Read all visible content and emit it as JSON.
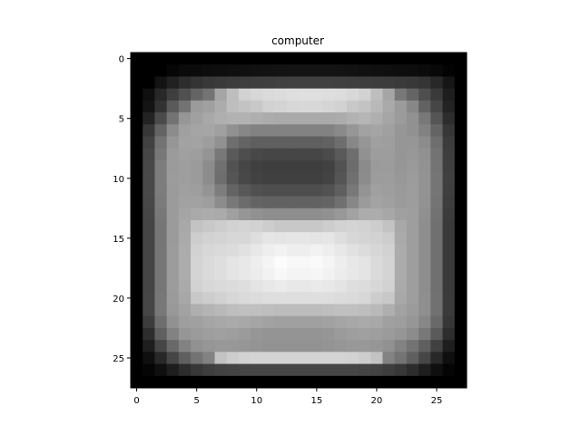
{
  "chart_data": {
    "type": "heatmap",
    "title": "computer",
    "xlabel": "",
    "ylabel": "",
    "colormap": "gray",
    "xlim": [
      -0.5,
      27.5
    ],
    "ylim": [
      27.5,
      -0.5
    ],
    "xticks": [
      0,
      5,
      10,
      15,
      20,
      25
    ],
    "yticks": [
      0,
      5,
      10,
      15,
      20,
      25
    ],
    "xtick_labels": [
      "0",
      "5",
      "10",
      "15",
      "20",
      "25"
    ],
    "ytick_labels": [
      "0",
      "5",
      "10",
      "15",
      "20",
      "25"
    ],
    "grid": false,
    "shape": [
      28,
      28
    ],
    "values": [
      [
        0,
        0,
        0,
        0,
        0,
        0,
        0,
        0,
        0,
        0,
        0,
        0,
        0,
        0,
        0,
        0,
        0,
        0,
        0,
        0,
        0,
        0,
        0,
        0,
        0,
        0,
        0,
        0
      ],
      [
        0,
        0,
        0,
        6,
        10,
        11,
        13,
        14,
        15,
        16,
        17,
        18,
        19,
        20,
        20,
        20,
        20,
        19,
        18,
        17,
        16,
        15,
        14,
        13,
        11,
        8,
        3,
        0
      ],
      [
        0,
        0,
        19,
        33,
        45,
        52,
        56,
        58,
        60,
        61,
        62,
        63,
        64,
        65,
        65,
        65,
        65,
        64,
        63,
        62,
        61,
        60,
        58,
        56,
        52,
        40,
        22,
        0
      ],
      [
        0,
        15,
        40,
        62,
        80,
        100,
        115,
        165,
        190,
        210,
        215,
        218,
        220,
        222,
        223,
        223,
        222,
        220,
        216,
        210,
        190,
        165,
        120,
        100,
        78,
        58,
        30,
        0
      ],
      [
        0,
        20,
        50,
        90,
        115,
        155,
        160,
        172,
        190,
        195,
        200,
        210,
        212,
        215,
        216,
        216,
        213,
        210,
        200,
        195,
        185,
        170,
        155,
        135,
        98,
        70,
        35,
        0
      ],
      [
        0,
        35,
        75,
        115,
        150,
        160,
        168,
        175,
        178,
        178,
        175,
        172,
        170,
        170,
        170,
        170,
        170,
        172,
        178,
        182,
        175,
        165,
        155,
        145,
        120,
        85,
        45,
        0
      ],
      [
        0,
        55,
        100,
        140,
        160,
        165,
        166,
        160,
        145,
        135,
        130,
        130,
        130,
        130,
        130,
        130,
        130,
        138,
        150,
        162,
        165,
        160,
        150,
        145,
        130,
        100,
        55,
        0
      ],
      [
        0,
        65,
        115,
        150,
        162,
        163,
        158,
        145,
        110,
        100,
        95,
        95,
        95,
        95,
        95,
        95,
        98,
        110,
        135,
        150,
        160,
        158,
        150,
        150,
        140,
        110,
        60,
        0
      ],
      [
        0,
        70,
        120,
        155,
        160,
        158,
        148,
        120,
        90,
        78,
        72,
        70,
        70,
        70,
        70,
        70,
        75,
        90,
        110,
        145,
        157,
        157,
        150,
        152,
        145,
        115,
        62,
        0
      ],
      [
        0,
        72,
        125,
        155,
        158,
        155,
        140,
        112,
        82,
        70,
        64,
        62,
        62,
        62,
        62,
        62,
        65,
        82,
        108,
        138,
        155,
        156,
        150,
        154,
        146,
        116,
        63,
        0
      ],
      [
        0,
        73,
        125,
        156,
        158,
        155,
        140,
        110,
        85,
        72,
        66,
        64,
        64,
        64,
        64,
        64,
        67,
        85,
        112,
        140,
        156,
        157,
        152,
        156,
        147,
        117,
        64,
        0
      ],
      [
        0,
        73,
        125,
        155,
        160,
        158,
        148,
        125,
        100,
        88,
        80,
        78,
        78,
        78,
        78,
        78,
        82,
        95,
        120,
        148,
        160,
        158,
        154,
        157,
        147,
        117,
        63,
        0
      ],
      [
        0,
        72,
        123,
        155,
        162,
        162,
        158,
        140,
        120,
        108,
        100,
        98,
        98,
        98,
        98,
        98,
        100,
        112,
        135,
        155,
        163,
        160,
        155,
        157,
        146,
        116,
        62,
        0
      ],
      [
        0,
        70,
        120,
        155,
        165,
        170,
        172,
        170,
        160,
        150,
        145,
        142,
        142,
        142,
        142,
        142,
        145,
        152,
        162,
        172,
        172,
        168,
        160,
        158,
        144,
        114,
        60,
        0
      ],
      [
        0,
        68,
        118,
        155,
        168,
        195,
        200,
        205,
        210,
        212,
        210,
        205,
        200,
        200,
        200,
        200,
        205,
        210,
        212,
        210,
        205,
        195,
        168,
        158,
        142,
        112,
        58,
        0
      ],
      [
        0,
        68,
        118,
        155,
        170,
        205,
        210,
        212,
        215,
        215,
        222,
        230,
        228,
        230,
        230,
        228,
        230,
        222,
        215,
        212,
        210,
        205,
        170,
        158,
        142,
        112,
        58,
        0
      ],
      [
        0,
        68,
        118,
        156,
        172,
        210,
        215,
        218,
        220,
        225,
        232,
        238,
        242,
        238,
        238,
        242,
        238,
        232,
        225,
        220,
        215,
        210,
        172,
        158,
        142,
        112,
        58,
        0
      ],
      [
        0,
        68,
        118,
        156,
        172,
        212,
        218,
        222,
        228,
        232,
        238,
        245,
        252,
        248,
        248,
        250,
        245,
        238,
        232,
        228,
        218,
        212,
        172,
        158,
        142,
        112,
        58,
        0
      ],
      [
        0,
        68,
        118,
        156,
        172,
        212,
        218,
        222,
        228,
        232,
        236,
        242,
        248,
        244,
        244,
        246,
        242,
        236,
        232,
        228,
        218,
        212,
        172,
        158,
        142,
        112,
        58,
        0
      ],
      [
        0,
        68,
        118,
        156,
        170,
        210,
        215,
        218,
        220,
        222,
        228,
        232,
        235,
        232,
        232,
        234,
        232,
        228,
        222,
        220,
        215,
        210,
        170,
        158,
        142,
        112,
        58,
        0
      ],
      [
        0,
        70,
        120,
        155,
        168,
        200,
        205,
        210,
        215,
        218,
        220,
        222,
        222,
        222,
        222,
        222,
        222,
        220,
        218,
        215,
        205,
        200,
        168,
        158,
        143,
        113,
        59,
        0
      ],
      [
        0,
        70,
        120,
        152,
        162,
        175,
        180,
        185,
        190,
        192,
        192,
        190,
        188,
        188,
        188,
        188,
        190,
        192,
        192,
        190,
        185,
        175,
        162,
        155,
        143,
        113,
        59,
        0
      ],
      [
        0,
        60,
        110,
        145,
        158,
        160,
        165,
        168,
        170,
        168,
        165,
        162,
        160,
        160,
        160,
        160,
        162,
        165,
        168,
        170,
        168,
        160,
        158,
        150,
        135,
        105,
        55,
        0
      ],
      [
        0,
        45,
        95,
        130,
        150,
        155,
        158,
        160,
        158,
        155,
        150,
        148,
        148,
        148,
        148,
        148,
        150,
        155,
        158,
        160,
        158,
        155,
        150,
        140,
        120,
        90,
        45,
        0
      ],
      [
        0,
        30,
        70,
        105,
        130,
        145,
        150,
        152,
        152,
        150,
        148,
        146,
        146,
        146,
        146,
        146,
        148,
        150,
        152,
        152,
        150,
        145,
        130,
        115,
        95,
        65,
        30,
        0
      ],
      [
        0,
        15,
        40,
        70,
        95,
        115,
        130,
        195,
        205,
        210,
        212,
        212,
        212,
        212,
        212,
        212,
        212,
        212,
        210,
        205,
        195,
        130,
        115,
        95,
        70,
        40,
        15,
        0
      ],
      [
        0,
        5,
        15,
        30,
        45,
        55,
        62,
        66,
        68,
        70,
        70,
        70,
        70,
        70,
        70,
        70,
        70,
        70,
        70,
        68,
        66,
        62,
        55,
        45,
        30,
        15,
        5,
        0
      ],
      [
        0,
        0,
        0,
        0,
        0,
        0,
        0,
        0,
        0,
        0,
        0,
        0,
        0,
        0,
        0,
        0,
        0,
        0,
        0,
        0,
        0,
        0,
        0,
        0,
        0,
        0,
        0,
        0
      ]
    ]
  }
}
